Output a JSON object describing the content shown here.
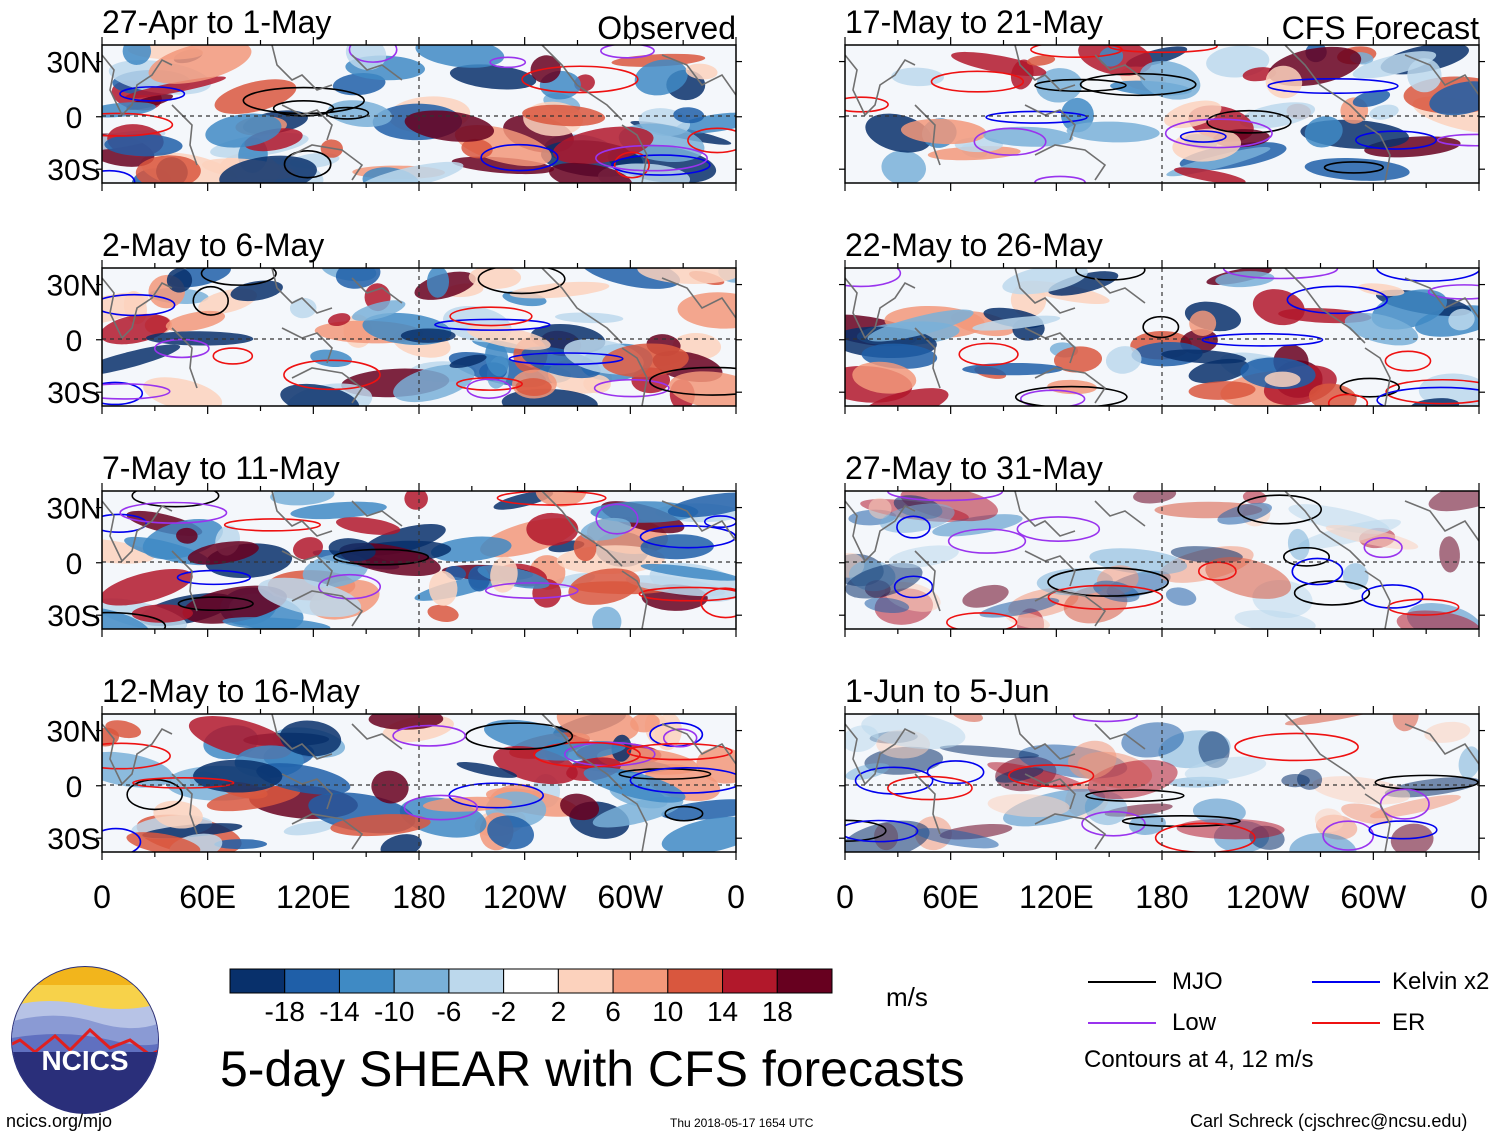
{
  "chart_data": {
    "type": "heatmap",
    "title": "5-day SHEAR with CFS forecasts",
    "variable_units": "m/s",
    "columns": [
      {
        "label": "Observed",
        "panels": [
          {
            "period": "27-Apr to 1-May"
          },
          {
            "period": "2-May to 6-May"
          },
          {
            "period": "7-May to 11-May"
          },
          {
            "period": "12-May to 16-May"
          }
        ]
      },
      {
        "label": "CFS Forecast",
        "panels": [
          {
            "period": "17-May to 21-May"
          },
          {
            "period": "22-May to 26-May"
          },
          {
            "period": "27-May to 31-May"
          },
          {
            "period": "1-Jun to 5-Jun"
          }
        ]
      }
    ],
    "x_ticks": [
      "0",
      "60E",
      "120E",
      "180",
      "120W",
      "60W",
      "0"
    ],
    "y_ticks": [
      "30N",
      "0",
      "30S"
    ],
    "colorbar_labels": [
      "-18",
      "-14",
      "-10",
      "-6",
      "-2",
      "2",
      "6",
      "10",
      "14",
      "18"
    ],
    "colorbar_colors": [
      "#08306b",
      "#1f5fa8",
      "#3f8ac4",
      "#79b0d8",
      "#bcd8ec",
      "#ffffff",
      "#fcd2bd",
      "#f2987a",
      "#d9573e",
      "#b2182b",
      "#67001f"
    ],
    "legend": [
      {
        "name": "MJO",
        "color": "#000000"
      },
      {
        "name": "Kelvin x2",
        "color": "#0000ee"
      },
      {
        "name": "Low",
        "color": "#9933ee"
      },
      {
        "name": "ER",
        "color": "#ee1111"
      }
    ],
    "contour_note": "Contours at 4, 12 m/s"
  },
  "logo": {
    "text": "NCICS"
  },
  "footer": {
    "url": "ncics.org/mjo",
    "timestamp": "Thu 2018-05-17 1654 UTC",
    "credit": "Carl Schreck (cjschrec@ncsu.edu)"
  }
}
